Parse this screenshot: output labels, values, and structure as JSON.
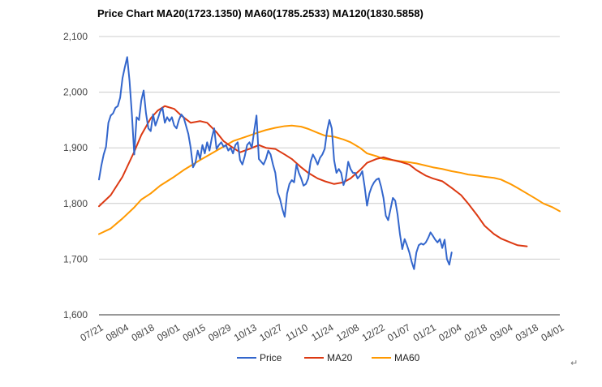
{
  "chart_data": {
    "type": "line",
    "title": "Price Chart MA20(1723.1350) MA60(1785.2533) MA120(1830.5858)",
    "xlabel": "",
    "ylabel": "",
    "ylim": [
      1600,
      2100
    ],
    "yticks": [
      1600,
      1700,
      1800,
      1900,
      2000,
      2100
    ],
    "ytick_labels": [
      "1,600",
      "1,700",
      "1,800",
      "1,900",
      "2,000",
      "2,100"
    ],
    "grid": true,
    "legend_position": "bottom",
    "x_tick_labels": [
      "07/21",
      "08/04",
      "08/18",
      "09/01",
      "09/15",
      "09/29",
      "10/13",
      "10/27",
      "11/10",
      "11/24",
      "12/08",
      "12/22",
      "01/07",
      "01/21",
      "02/04",
      "02/18",
      "03/04",
      "03/18",
      "04/01"
    ],
    "series": [
      {
        "name": "Price",
        "color": "#3366cc",
        "values": [
          [
            0,
            1843
          ],
          [
            1,
            1868
          ],
          [
            2,
            1888
          ],
          [
            3,
            1902
          ],
          [
            4,
            1945
          ],
          [
            5,
            1958
          ],
          [
            6,
            1962
          ],
          [
            7,
            1972
          ],
          [
            8,
            1975
          ],
          [
            9,
            1990
          ],
          [
            10,
            2025
          ],
          [
            11,
            2045
          ],
          [
            12,
            2063
          ],
          [
            13,
            2020
          ],
          [
            14,
            1960
          ],
          [
            15,
            1888
          ],
          [
            16,
            1955
          ],
          [
            17,
            1950
          ],
          [
            18,
            1985
          ],
          [
            19,
            2003
          ],
          [
            20,
            1962
          ],
          [
            21,
            1935
          ],
          [
            22,
            1930
          ],
          [
            23,
            1960
          ],
          [
            24,
            1940
          ],
          [
            25,
            1952
          ],
          [
            26,
            1965
          ],
          [
            27,
            1972
          ],
          [
            28,
            1945
          ],
          [
            29,
            1955
          ],
          [
            30,
            1948
          ],
          [
            31,
            1955
          ],
          [
            32,
            1940
          ],
          [
            33,
            1935
          ],
          [
            34,
            1950
          ],
          [
            35,
            1960
          ],
          [
            36,
            1955
          ],
          [
            37,
            1940
          ],
          [
            38,
            1925
          ],
          [
            39,
            1900
          ],
          [
            40,
            1865
          ],
          [
            41,
            1873
          ],
          [
            42,
            1895
          ],
          [
            43,
            1880
          ],
          [
            44,
            1905
          ],
          [
            45,
            1890
          ],
          [
            46,
            1910
          ],
          [
            47,
            1895
          ],
          [
            48,
            1918
          ],
          [
            49,
            1935
          ],
          [
            50,
            1898
          ],
          [
            51,
            1905
          ],
          [
            52,
            1910
          ],
          [
            53,
            1902
          ],
          [
            54,
            1905
          ],
          [
            55,
            1895
          ],
          [
            56,
            1900
          ],
          [
            57,
            1890
          ],
          [
            58,
            1905
          ],
          [
            59,
            1910
          ],
          [
            60,
            1878
          ],
          [
            61,
            1870
          ],
          [
            62,
            1885
          ],
          [
            63,
            1905
          ],
          [
            64,
            1910
          ],
          [
            65,
            1900
          ],
          [
            66,
            1930
          ],
          [
            67,
            1958
          ],
          [
            68,
            1880
          ],
          [
            69,
            1875
          ],
          [
            70,
            1870
          ],
          [
            71,
            1880
          ],
          [
            72,
            1895
          ],
          [
            73,
            1888
          ],
          [
            74,
            1870
          ],
          [
            75,
            1855
          ],
          [
            76,
            1820
          ],
          [
            77,
            1808
          ],
          [
            78,
            1790
          ],
          [
            79,
            1776
          ],
          [
            80,
            1818
          ],
          [
            81,
            1835
          ],
          [
            82,
            1842
          ],
          [
            83,
            1838
          ],
          [
            84,
            1870
          ],
          [
            85,
            1855
          ],
          [
            86,
            1845
          ],
          [
            87,
            1832
          ],
          [
            88,
            1835
          ],
          [
            89,
            1845
          ],
          [
            90,
            1875
          ],
          [
            91,
            1888
          ],
          [
            92,
            1880
          ],
          [
            93,
            1870
          ],
          [
            94,
            1882
          ],
          [
            95,
            1888
          ],
          [
            96,
            1898
          ],
          [
            97,
            1930
          ],
          [
            98,
            1950
          ],
          [
            99,
            1935
          ],
          [
            100,
            1878
          ],
          [
            101,
            1855
          ],
          [
            102,
            1862
          ],
          [
            103,
            1855
          ],
          [
            104,
            1833
          ],
          [
            105,
            1845
          ],
          [
            106,
            1875
          ],
          [
            107,
            1862
          ],
          [
            108,
            1855
          ],
          [
            109,
            1855
          ],
          [
            110,
            1845
          ],
          [
            111,
            1850
          ],
          [
            112,
            1858
          ],
          [
            113,
            1830
          ],
          [
            114,
            1796
          ],
          [
            115,
            1818
          ],
          [
            116,
            1830
          ],
          [
            117,
            1838
          ],
          [
            118,
            1843
          ],
          [
            119,
            1845
          ],
          [
            120,
            1830
          ],
          [
            121,
            1810
          ],
          [
            122,
            1778
          ],
          [
            123,
            1770
          ],
          [
            124,
            1790
          ],
          [
            125,
            1810
          ],
          [
            126,
            1805
          ],
          [
            127,
            1780
          ],
          [
            128,
            1745
          ],
          [
            129,
            1718
          ],
          [
            130,
            1736
          ],
          [
            131,
            1725
          ],
          [
            132,
            1712
          ],
          [
            133,
            1695
          ],
          [
            134,
            1682
          ],
          [
            135,
            1712
          ],
          [
            136,
            1725
          ],
          [
            137,
            1728
          ],
          [
            138,
            1726
          ],
          [
            139,
            1730
          ],
          [
            140,
            1738
          ],
          [
            141,
            1748
          ],
          [
            142,
            1742
          ],
          [
            143,
            1735
          ],
          [
            144,
            1730
          ],
          [
            145,
            1736
          ],
          [
            146,
            1720
          ],
          [
            147,
            1735
          ],
          [
            148,
            1700
          ],
          [
            149,
            1690
          ],
          [
            150,
            1712
          ]
        ]
      },
      {
        "name": "MA20",
        "color": "#dc3912",
        "values": [
          [
            0,
            1795
          ],
          [
            5,
            1815
          ],
          [
            10,
            1848
          ],
          [
            15,
            1893
          ],
          [
            18,
            1923
          ],
          [
            22,
            1953
          ],
          [
            25,
            1967
          ],
          [
            28,
            1975
          ],
          [
            32,
            1970
          ],
          [
            35,
            1958
          ],
          [
            39,
            1945
          ],
          [
            43,
            1948
          ],
          [
            46,
            1945
          ],
          [
            50,
            1928
          ],
          [
            53,
            1912
          ],
          [
            57,
            1900
          ],
          [
            60,
            1892
          ],
          [
            64,
            1898
          ],
          [
            68,
            1905
          ],
          [
            71,
            1900
          ],
          [
            75,
            1898
          ],
          [
            79,
            1888
          ],
          [
            82,
            1880
          ],
          [
            86,
            1865
          ],
          [
            89,
            1855
          ],
          [
            93,
            1845
          ],
          [
            96,
            1840
          ],
          [
            100,
            1835
          ],
          [
            104,
            1838
          ],
          [
            107,
            1845
          ],
          [
            111,
            1860
          ],
          [
            114,
            1873
          ],
          [
            118,
            1880
          ],
          [
            121,
            1883
          ],
          [
            125,
            1878
          ],
          [
            128,
            1875
          ],
          [
            132,
            1870
          ],
          [
            135,
            1860
          ],
          [
            139,
            1850
          ],
          [
            142,
            1845
          ],
          [
            146,
            1840
          ],
          [
            150,
            1828
          ],
          [
            154,
            1815
          ],
          [
            157,
            1800
          ],
          [
            161,
            1778
          ],
          [
            164,
            1760
          ],
          [
            168,
            1745
          ],
          [
            171,
            1737
          ],
          [
            175,
            1730
          ],
          [
            178,
            1725
          ],
          [
            182,
            1723
          ]
        ]
      },
      {
        "name": "MA60",
        "color": "#ff9900",
        "values": [
          [
            0,
            1745
          ],
          [
            5,
            1755
          ],
          [
            10,
            1773
          ],
          [
            15,
            1793
          ],
          [
            18,
            1807
          ],
          [
            22,
            1818
          ],
          [
            26,
            1832
          ],
          [
            32,
            1848
          ],
          [
            36,
            1860
          ],
          [
            43,
            1878
          ],
          [
            50,
            1895
          ],
          [
            57,
            1912
          ],
          [
            64,
            1922
          ],
          [
            68,
            1928
          ],
          [
            71,
            1932
          ],
          [
            75,
            1936
          ],
          [
            79,
            1939
          ],
          [
            82,
            1940
          ],
          [
            86,
            1938
          ],
          [
            89,
            1934
          ],
          [
            93,
            1927
          ],
          [
            96,
            1922
          ],
          [
            100,
            1920
          ],
          [
            104,
            1915
          ],
          [
            107,
            1910
          ],
          [
            111,
            1900
          ],
          [
            114,
            1890
          ],
          [
            118,
            1885
          ],
          [
            121,
            1880
          ],
          [
            125,
            1878
          ],
          [
            128,
            1876
          ],
          [
            132,
            1874
          ],
          [
            135,
            1872
          ],
          [
            139,
            1868
          ],
          [
            142,
            1865
          ],
          [
            146,
            1862
          ],
          [
            150,
            1858
          ],
          [
            154,
            1855
          ],
          [
            157,
            1852
          ],
          [
            161,
            1850
          ],
          [
            164,
            1848
          ],
          [
            168,
            1846
          ],
          [
            171,
            1843
          ],
          [
            175,
            1835
          ],
          [
            178,
            1828
          ],
          [
            182,
            1818
          ],
          [
            186,
            1808
          ],
          [
            189,
            1800
          ],
          [
            193,
            1793
          ],
          [
            196,
            1786
          ]
        ]
      }
    ]
  }
}
